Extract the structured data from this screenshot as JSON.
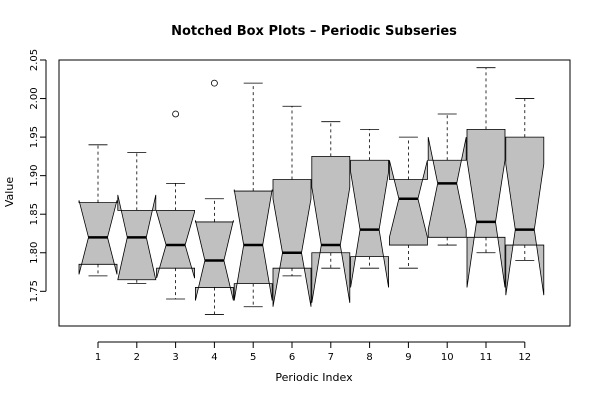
{
  "chart_data": {
    "type": "boxplot",
    "title": "Notched Box Plots – Periodic Subseries",
    "xlabel": "Periodic Index",
    "ylabel": "Value",
    "categories": [
      "1",
      "2",
      "3",
      "4",
      "5",
      "6",
      "7",
      "8",
      "9",
      "10",
      "11",
      "12"
    ],
    "ylim": [
      1.705,
      2.05
    ],
    "yticks": [
      "1.75",
      "1.80",
      "1.85",
      "1.90",
      "1.95",
      "2.00",
      "2.05"
    ],
    "box_fill": "#c0c0c0",
    "boxes": [
      {
        "label": "1",
        "whisker_low": 1.77,
        "q1": 1.785,
        "median": 1.82,
        "q3": 1.865,
        "whisker_high": 1.94,
        "notch_low": 1.772,
        "notch_high": 1.868,
        "outliers": []
      },
      {
        "label": "2",
        "whisker_low": 1.76,
        "q1": 1.765,
        "median": 1.82,
        "q3": 1.855,
        "whisker_high": 1.93,
        "notch_low": 1.765,
        "notch_high": 1.875,
        "outliers": []
      },
      {
        "label": "3",
        "whisker_low": 1.74,
        "q1": 1.78,
        "median": 1.81,
        "q3": 1.855,
        "whisker_high": 1.89,
        "notch_low": 1.767,
        "notch_high": 1.853,
        "outliers": [
          1.98
        ]
      },
      {
        "label": "4",
        "whisker_low": 1.72,
        "q1": 1.755,
        "median": 1.79,
        "q3": 1.84,
        "whisker_high": 1.87,
        "notch_low": 1.738,
        "notch_high": 1.842,
        "outliers": [
          2.02
        ]
      },
      {
        "label": "5",
        "whisker_low": 1.73,
        "q1": 1.76,
        "median": 1.81,
        "q3": 1.88,
        "whisker_high": 2.02,
        "notch_low": 1.738,
        "notch_high": 1.882,
        "outliers": []
      },
      {
        "label": "6",
        "whisker_low": 1.77,
        "q1": 1.78,
        "median": 1.8,
        "q3": 1.895,
        "whisker_high": 1.99,
        "notch_low": 1.73,
        "notch_high": 1.87,
        "outliers": []
      },
      {
        "label": "7",
        "whisker_low": 1.78,
        "q1": 1.8,
        "median": 1.81,
        "q3": 1.925,
        "whisker_high": 1.97,
        "notch_low": 1.735,
        "notch_high": 1.885,
        "outliers": []
      },
      {
        "label": "8",
        "whisker_low": 1.78,
        "q1": 1.795,
        "median": 1.83,
        "q3": 1.92,
        "whisker_high": 1.96,
        "notch_low": 1.755,
        "notch_high": 1.905,
        "outliers": []
      },
      {
        "label": "9",
        "whisker_low": 1.78,
        "q1": 1.81,
        "median": 1.87,
        "q3": 1.895,
        "whisker_high": 1.95,
        "notch_low": 1.82,
        "notch_high": 1.92,
        "outliers": []
      },
      {
        "label": "10",
        "whisker_low": 1.81,
        "q1": 1.82,
        "median": 1.89,
        "q3": 1.92,
        "whisker_high": 1.98,
        "notch_low": 1.83,
        "notch_high": 1.95,
        "outliers": []
      },
      {
        "label": "11",
        "whisker_low": 1.8,
        "q1": 1.82,
        "median": 1.84,
        "q3": 1.96,
        "whisker_high": 2.04,
        "notch_low": 1.755,
        "notch_high": 1.92,
        "outliers": []
      },
      {
        "label": "12",
        "whisker_low": 1.79,
        "q1": 1.81,
        "median": 1.83,
        "q3": 1.95,
        "whisker_high": 2.0,
        "notch_low": 1.745,
        "notch_high": 1.915,
        "outliers": []
      }
    ]
  }
}
